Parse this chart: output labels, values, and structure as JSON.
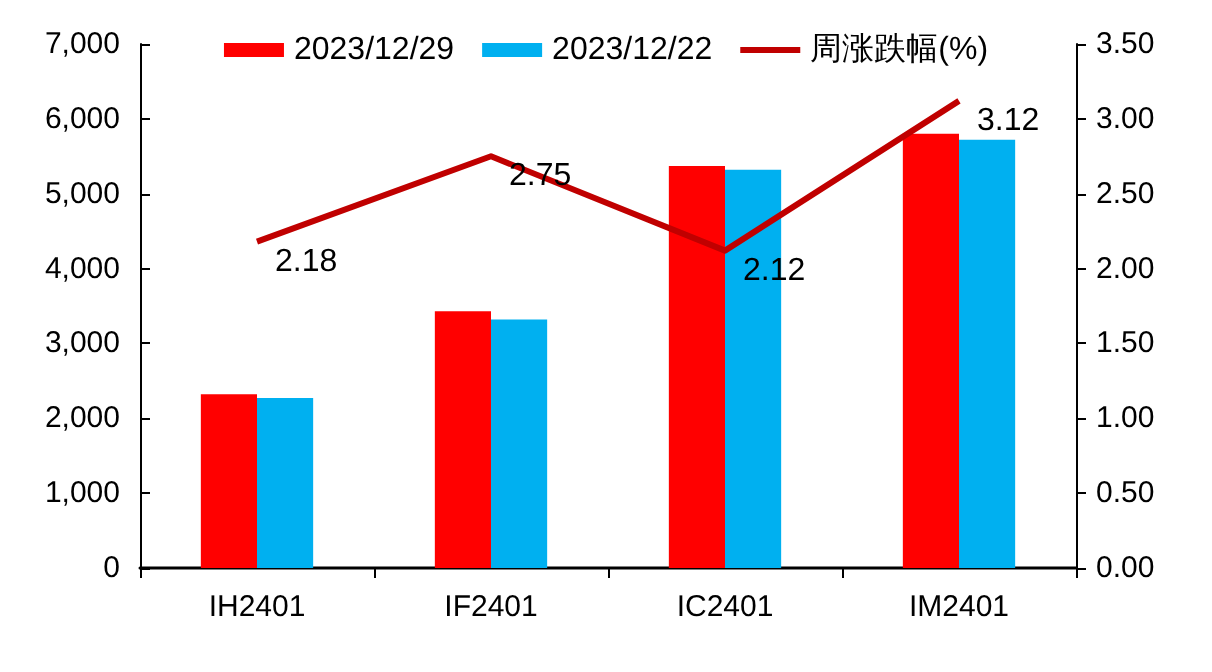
{
  "chart_data": {
    "type": "bar",
    "categories": [
      "IH2401",
      "IF2401",
      "IC2401",
      "IM2401"
    ],
    "series": [
      {
        "name": "2023/12/29",
        "color": "#ff0000",
        "values": [
          2320,
          3430,
          5370,
          5800
        ]
      },
      {
        "name": "2023/12/22",
        "color": "#00b0f0",
        "values": [
          2270,
          3320,
          5320,
          5720
        ]
      },
      {
        "name": "周涨跌幅(%)",
        "type": "line",
        "axis": "y2",
        "color": "#c00000",
        "values": [
          2.18,
          2.75,
          2.12,
          3.12
        ],
        "value_labels": [
          "2.18",
          "2.75",
          "2.12",
          "3.12"
        ]
      }
    ],
    "ylim": [
      0,
      7000
    ],
    "yticks": [
      0,
      {
        "value": 1000,
        "label": "1,000"
      },
      {
        "value": 2000,
        "label": "2,000"
      },
      {
        "value": 3000,
        "label": "3,000"
      },
      {
        "value": 4000,
        "label": "4,000"
      },
      {
        "value": 5000,
        "label": "5,000"
      },
      {
        "value": 6000,
        "label": "6,000"
      },
      {
        "value": 7000,
        "label": "7,000"
      }
    ],
    "y2lim": [
      0,
      3.5
    ],
    "y2ticks": [
      {
        "value": 0,
        "label": "0.00"
      },
      {
        "value": 0.5,
        "label": "0.50"
      },
      {
        "value": 1,
        "label": "1.00"
      },
      {
        "value": 1.5,
        "label": "1.50"
      },
      {
        "value": 2,
        "label": "2.00"
      },
      {
        "value": 2.5,
        "label": "2.50"
      },
      {
        "value": 3,
        "label": "3.00"
      },
      {
        "value": 3.5,
        "label": "3.50"
      }
    ],
    "grid": false,
    "legend": "top",
    "marker": "none",
    "line_style": "solid"
  }
}
